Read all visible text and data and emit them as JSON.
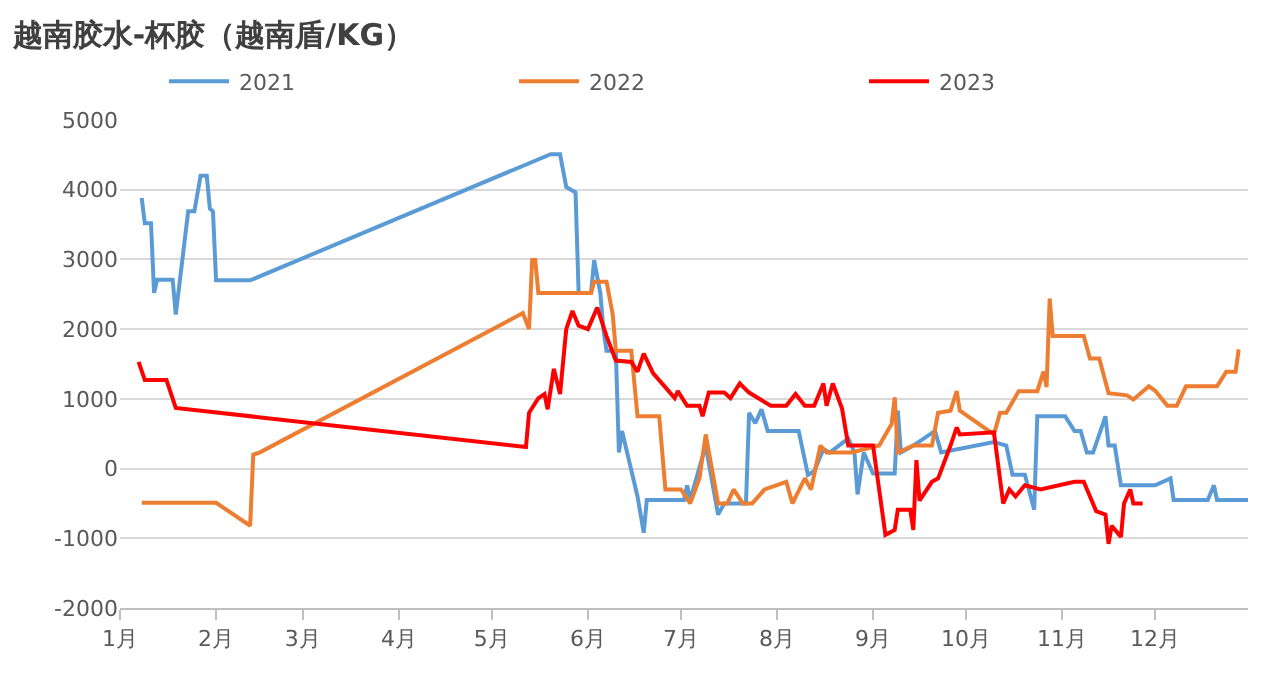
{
  "chart_data": {
    "type": "line",
    "title": "越南胶水-杯胶（越南盾/KG）",
    "xlim": [
      "--01-01",
      "--12-31"
    ],
    "xticks": [
      {
        "value": "--01-01",
        "label": "1月"
      },
      {
        "value": "--02-01",
        "label": "2月"
      },
      {
        "value": "--03-01",
        "label": "3月"
      },
      {
        "value": "--04-01",
        "label": "4月"
      },
      {
        "value": "--05-01",
        "label": "5月"
      },
      {
        "value": "--06-01",
        "label": "6月"
      },
      {
        "value": "--07-01",
        "label": "7月"
      },
      {
        "value": "--08-01",
        "label": "8月"
      },
      {
        "value": "--09-01",
        "label": "9月"
      },
      {
        "value": "--10-01",
        "label": "10月"
      },
      {
        "value": "--11-01",
        "label": "11月"
      },
      {
        "value": "--12-01",
        "label": "12月"
      }
    ],
    "ylim": [
      -2000,
      5000
    ],
    "yticks": [
      -2000,
      -1000,
      0,
      1000,
      2000,
      3000,
      4000,
      5000
    ],
    "grid": "y",
    "legend": "top",
    "marker": "none",
    "line_style": "solid",
    "series": [
      {
        "name": "2021",
        "color": "#5b9bd5",
        "x": [
          "--01-08",
          "--01-09",
          "--01-11",
          "--01-12",
          "--01-13",
          "--01-18",
          "--01-19",
          "--01-23",
          "--01-25",
          "--01-27",
          "--01-29",
          "--01-30",
          "--01-31",
          "--02-01",
          "--02-12",
          "--05-20",
          "--05-23",
          "--05-25",
          "--05-28",
          "--05-29",
          "--06-02",
          "--06-03",
          "--06-05",
          "--06-06",
          "--06-07",
          "--06-10",
          "--06-11",
          "--06-12",
          "--06-17",
          "--06-19",
          "--06-20",
          "--07-02",
          "--07-03",
          "--07-04",
          "--07-09",
          "--07-13",
          "--07-15",
          "--07-22",
          "--07-23",
          "--07-25",
          "--07-27",
          "--07-29",
          "--08-08",
          "--08-11",
          "--08-13",
          "--08-16",
          "--08-18",
          "--08-24",
          "--08-26",
          "--08-27",
          "--08-29",
          "--09-01",
          "--09-08",
          "--09-09",
          "--09-10",
          "--09-14",
          "--09-21",
          "--09-23",
          "--10-10",
          "--10-14",
          "--10-16",
          "--10-20",
          "--10-23",
          "--10-24",
          "--11-02",
          "--11-05",
          "--11-07",
          "--11-09",
          "--11-11",
          "--11-15",
          "--11-16",
          "--11-18",
          "--11-20",
          "--12-01",
          "--12-06",
          "--12-07",
          "--12-18",
          "--12-20",
          "--12-21",
          "--12-31"
        ],
        "values": [
          3880,
          3520,
          3520,
          2520,
          2710,
          2710,
          2210,
          3690,
          3690,
          4200,
          4200,
          3730,
          3690,
          2700,
          2700,
          4510,
          4510,
          4040,
          3960,
          2520,
          2520,
          2990,
          2520,
          2000,
          1690,
          1690,
          230,
          540,
          -400,
          -920,
          -450,
          -450,
          -240,
          -450,
          330,
          -660,
          -500,
          -500,
          800,
          650,
          850,
          540,
          540,
          -90,
          -40,
          280,
          230,
          430,
          230,
          -370,
          230,
          -70,
          -70,
          830,
          230,
          330,
          540,
          230,
          380,
          330,
          -90,
          -90,
          -590,
          750,
          750,
          540,
          540,
          230,
          230,
          750,
          330,
          330,
          -240,
          -240,
          -140,
          -450,
          -450,
          -240,
          -450,
          -450
        ]
      },
      {
        "name": "2022",
        "color": "#ed7d31",
        "x": [
          "--01-08",
          "--02-01",
          "--02-12",
          "--02-13",
          "--02-15",
          "--05-11",
          "--05-13",
          "--05-14",
          "--05-15",
          "--05-16",
          "--06-02",
          "--06-03",
          "--06-07",
          "--06-09",
          "--06-10",
          "--06-15",
          "--06-17",
          "--06-24",
          "--06-26",
          "--07-01",
          "--07-04",
          "--07-07",
          "--07-09",
          "--07-13",
          "--07-16",
          "--07-18",
          "--07-21",
          "--07-24",
          "--07-28",
          "--08-04",
          "--08-06",
          "--08-10",
          "--08-12",
          "--08-15",
          "--08-17",
          "--08-25",
          "--09-03",
          "--09-07",
          "--09-08",
          "--09-09",
          "--09-14",
          "--09-20",
          "--09-22",
          "--09-26",
          "--09-28",
          "--09-29",
          "--10-10",
          "--10-12",
          "--10-14",
          "--10-18",
          "--10-24",
          "--10-26",
          "--10-27",
          "--10-28",
          "--10-29",
          "--11-08",
          "--11-10",
          "--11-13",
          "--11-16",
          "--11-22",
          "--11-24",
          "--11-29",
          "--12-01",
          "--12-05",
          "--12-08",
          "--12-11",
          "--12-21",
          "--12-24",
          "--12-27",
          "--12-28"
        ],
        "values": [
          -490,
          -490,
          -820,
          200,
          230,
          2230,
          2000,
          2990,
          2990,
          2520,
          2520,
          2680,
          2680,
          2210,
          1690,
          1690,
          750,
          750,
          -300,
          -300,
          -500,
          -140,
          490,
          -500,
          -500,
          -300,
          -500,
          -500,
          -300,
          -190,
          -500,
          -140,
          -300,
          330,
          230,
          230,
          330,
          640,
          1020,
          230,
          330,
          330,
          800,
          830,
          1110,
          830,
          490,
          800,
          800,
          1110,
          1110,
          1390,
          1170,
          2440,
          1900,
          1900,
          1580,
          1580,
          1080,
          1050,
          990,
          1180,
          1120,
          900,
          900,
          1180,
          1180,
          1390,
          1390,
          1710
        ]
      },
      {
        "name": "2023",
        "color": "#ff0000",
        "x": [
          "--01-07",
          "--01-09",
          "--01-16",
          "--01-19",
          "--05-12",
          "--05-13",
          "--05-16",
          "--05-18",
          "--05-19",
          "--05-21",
          "--05-23",
          "--05-25",
          "--05-27",
          "--05-29",
          "--06-01",
          "--06-04",
          "--06-07",
          "--06-10",
          "--06-15",
          "--06-17",
          "--06-19",
          "--06-22",
          "--06-29",
          "--06-30",
          "--07-03",
          "--07-07",
          "--07-08",
          "--07-10",
          "--07-15",
          "--07-17",
          "--07-20",
          "--07-23",
          "--07-30",
          "--08-04",
          "--08-07",
          "--08-10",
          "--08-13",
          "--08-16",
          "--08-17",
          "--08-19",
          "--08-22",
          "--08-24",
          "--09-01",
          "--09-05",
          "--09-08",
          "--09-09",
          "--09-13",
          "--09-14",
          "--09-15",
          "--09-16",
          "--09-20",
          "--09-22",
          "--09-26",
          "--09-28",
          "--09-29",
          "--10-10",
          "--10-13",
          "--10-15",
          "--10-17",
          "--10-20",
          "--10-25",
          "--11-05",
          "--11-08",
          "--11-12",
          "--11-15",
          "--11-16",
          "--11-17",
          "--11-20",
          "--11-21",
          "--11-23",
          "--11-24",
          "--11-27"
        ],
        "values": [
          1530,
          1270,
          1270,
          870,
          310,
          800,
          1010,
          1070,
          850,
          1430,
          1070,
          2000,
          2260,
          2050,
          2000,
          2310,
          1900,
          1550,
          1530,
          1390,
          1650,
          1370,
          1010,
          1110,
          900,
          900,
          750,
          1090,
          1090,
          1010,
          1220,
          1090,
          900,
          900,
          1070,
          900,
          900,
          1220,
          900,
          1220,
          860,
          330,
          330,
          -950,
          -880,
          -590,
          -590,
          -880,
          120,
          -460,
          -190,
          -140,
          330,
          590,
          490,
          520,
          -500,
          -300,
          -400,
          -240,
          -300,
          -190,
          -190,
          -610,
          -660,
          -1080,
          -820,
          -980,
          -500,
          -300,
          -500,
          -500
        ]
      }
    ]
  }
}
